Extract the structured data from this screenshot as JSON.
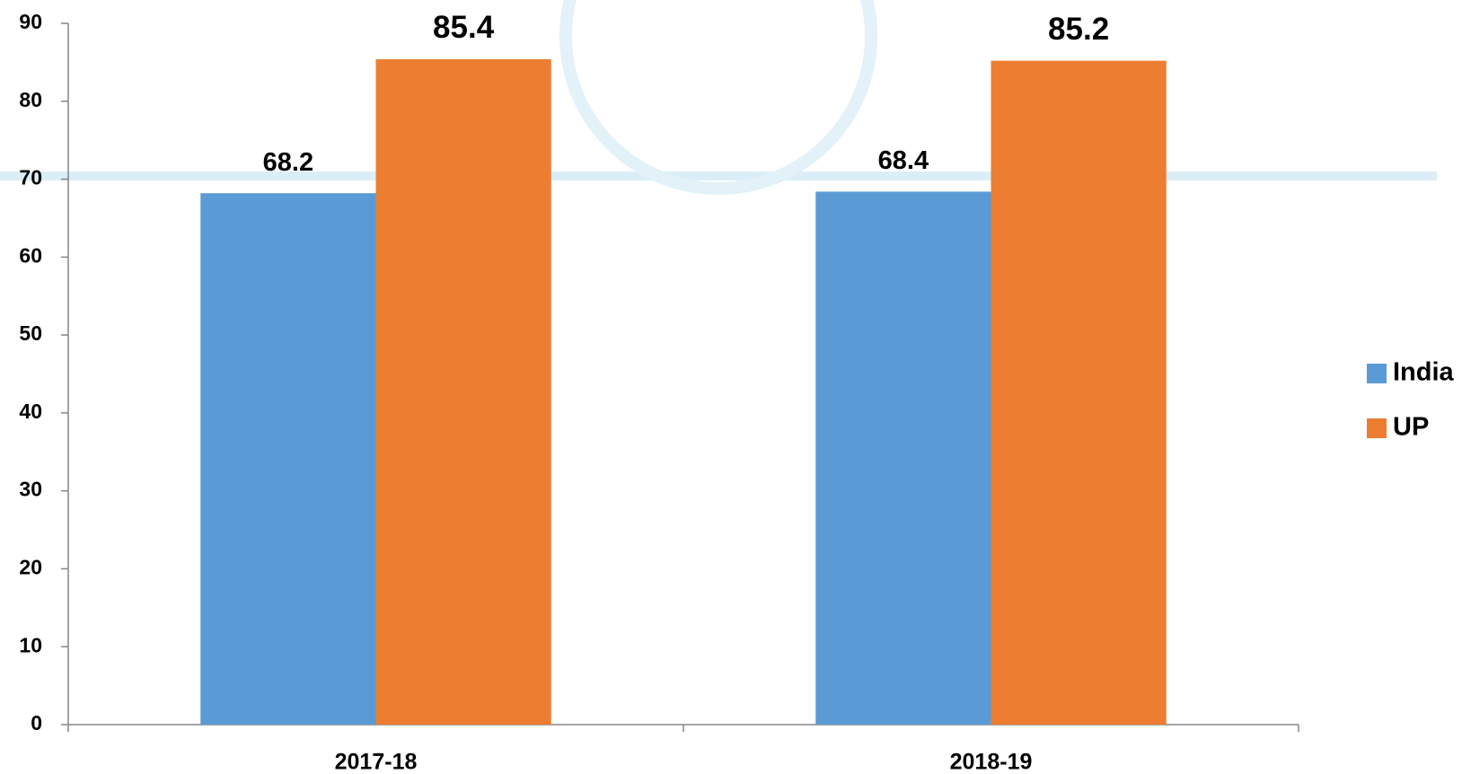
{
  "chart_data": {
    "type": "bar",
    "categories": [
      "2017-18",
      "2018-19"
    ],
    "series": [
      {
        "name": "India",
        "color": "#5b9bd5",
        "values": [
          68.2,
          68.4
        ]
      },
      {
        "name": "UP",
        "color": "#ed7d31",
        "values": [
          85.4,
          85.2
        ]
      }
    ],
    "ylim": [
      0,
      90
    ],
    "yticks": [
      0,
      10,
      20,
      30,
      40,
      50,
      60,
      70,
      80,
      90
    ],
    "legend": "right"
  }
}
